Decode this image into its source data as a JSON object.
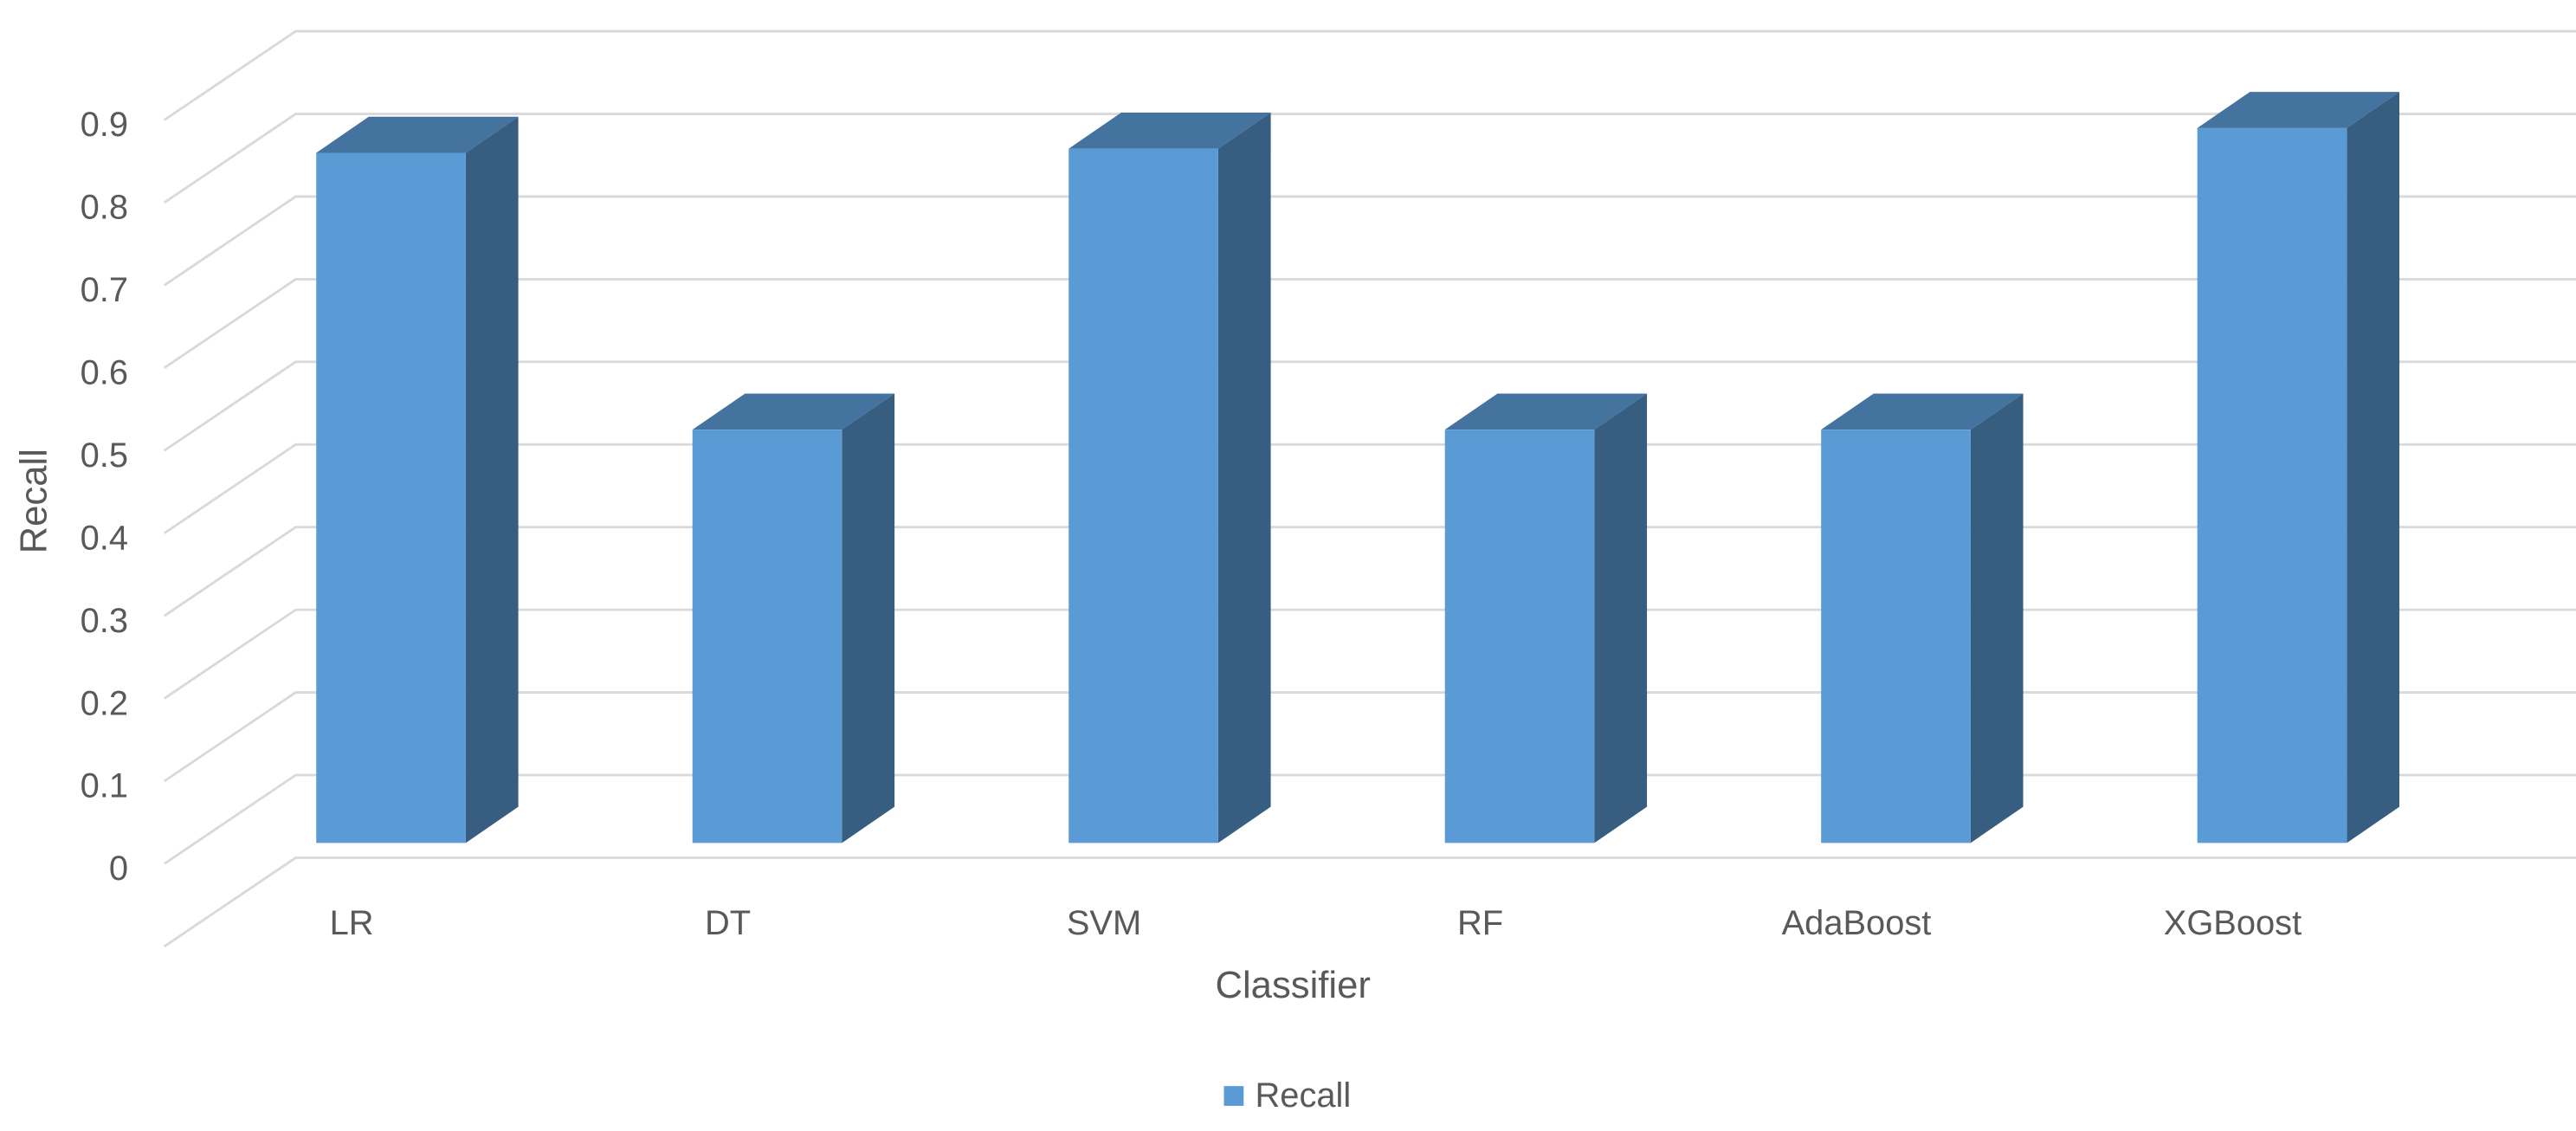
{
  "chart_data": {
    "type": "bar3d",
    "categories": [
      "LR",
      "DT",
      "SVM",
      "RF",
      "AdaBoost",
      "XGBoost"
    ],
    "series": [
      {
        "name": "Recall",
        "color": "#5b9bd5",
        "values": [
          0.835,
          0.5,
          0.84,
          0.5,
          0.5,
          0.865
        ]
      }
    ],
    "x_label": "Classifier",
    "y_label": "Recall",
    "ylim": [
      0,
      1
    ],
    "yticks": [
      0,
      0.1,
      0.2,
      0.3,
      0.4,
      0.5,
      0.6,
      0.7,
      0.8,
      0.9
    ],
    "grid": true,
    "legend": "bottom"
  }
}
